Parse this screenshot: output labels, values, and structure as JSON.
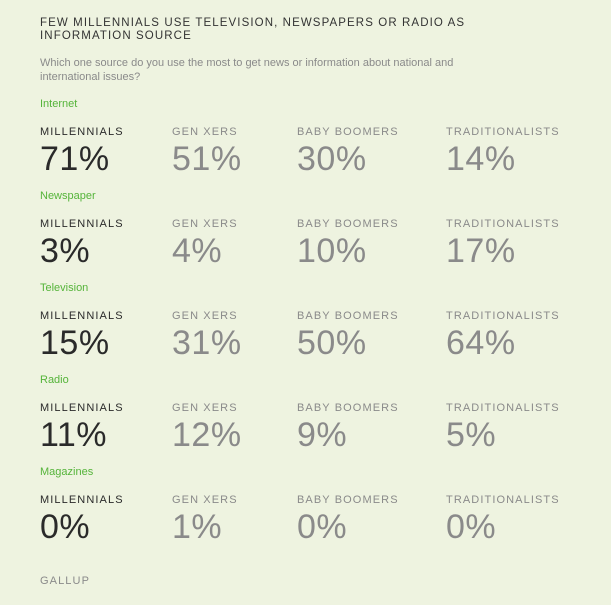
{
  "title": "FEW MILLENNIALS USE TELEVISION, NEWSPAPERS OR RADIO AS INFORMATION SOURCE",
  "subtitle": "Which one source do you use the most to get news or information about national and international issues?",
  "source": "GALLUP",
  "colors": {
    "accent": "#55b43a",
    "background": "#eef3e0",
    "highlight": "#2a2a2a",
    "muted": "#8a8a8a"
  },
  "chart_data": {
    "type": "table",
    "title": "FEW MILLENNIALS USE TELEVISION, NEWSPAPERS OR RADIO AS INFORMATION SOURCE",
    "generations": [
      "MILLENNIALS",
      "GEN XERS",
      "BABY BOOMERS",
      "TRADITIONALISTS"
    ],
    "rows": [
      {
        "category": "Internet",
        "values": [
          "71%",
          "51%",
          "30%",
          "14%"
        ]
      },
      {
        "category": "Newspaper",
        "values": [
          "3%",
          "4%",
          "10%",
          "17%"
        ]
      },
      {
        "category": "Television",
        "values": [
          "15%",
          "31%",
          "50%",
          "64%"
        ]
      },
      {
        "category": "Radio",
        "values": [
          "11%",
          "12%",
          "9%",
          "5%"
        ]
      },
      {
        "category": "Magazines",
        "values": [
          "0%",
          "1%",
          "0%",
          "0%"
        ]
      }
    ]
  }
}
